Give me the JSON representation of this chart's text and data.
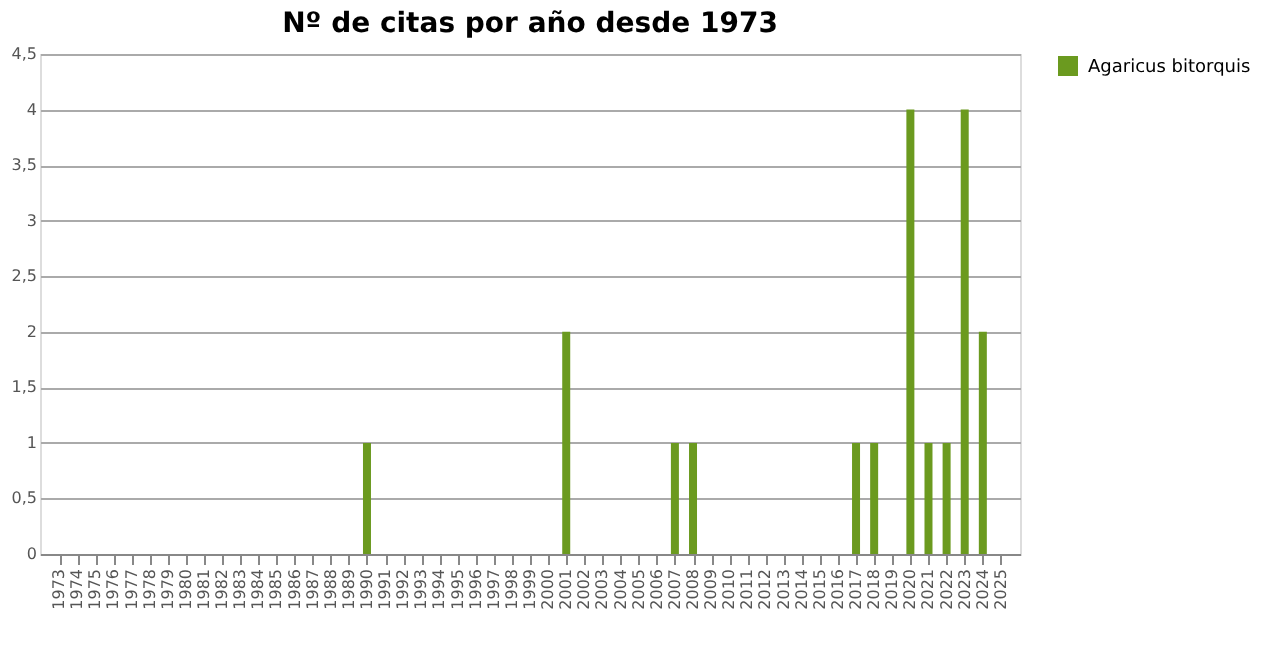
{
  "chart_data": {
    "type": "bar",
    "title": "Nº de citas por año desde 1973",
    "categories": [
      "1973",
      "1974",
      "1975",
      "1976",
      "1977",
      "1978",
      "1979",
      "1980",
      "1981",
      "1982",
      "1983",
      "1984",
      "1985",
      "1986",
      "1987",
      "1988",
      "1989",
      "1990",
      "1991",
      "1992",
      "1993",
      "1994",
      "1995",
      "1996",
      "1997",
      "1998",
      "1999",
      "2000",
      "2001",
      "2002",
      "2003",
      "2004",
      "2005",
      "2006",
      "2007",
      "2008",
      "2009",
      "2010",
      "2011",
      "2012",
      "2013",
      "2014",
      "2015",
      "2016",
      "2017",
      "2018",
      "2019",
      "2020",
      "2021",
      "2022",
      "2023",
      "2024",
      "2025"
    ],
    "series": [
      {
        "name": "Agaricus bitorquis",
        "color": "#6b9a1f",
        "values": [
          0,
          0,
          0,
          0,
          0,
          0,
          0,
          0,
          0,
          0,
          0,
          0,
          0,
          0,
          0,
          0,
          0,
          1,
          0,
          0,
          0,
          0,
          0,
          0,
          0,
          0,
          0,
          0,
          2,
          0,
          0,
          0,
          0,
          0,
          1,
          1,
          0,
          0,
          0,
          0,
          0,
          0,
          0,
          0,
          1,
          1,
          0,
          4,
          1,
          1,
          4,
          2,
          0
        ]
      }
    ],
    "ylim": [
      0,
      4.5
    ],
    "yticks": [
      0,
      {
        "value": 0.5,
        "label": "0,5"
      },
      1,
      {
        "value": 1.5,
        "label": "1,5"
      },
      2,
      {
        "value": 2.5,
        "label": "2,5"
      },
      3,
      {
        "value": 3.5,
        "label": "3,5"
      },
      4,
      {
        "value": 4.5,
        "label": "4,5"
      }
    ],
    "grid": "y",
    "legend": "right"
  }
}
